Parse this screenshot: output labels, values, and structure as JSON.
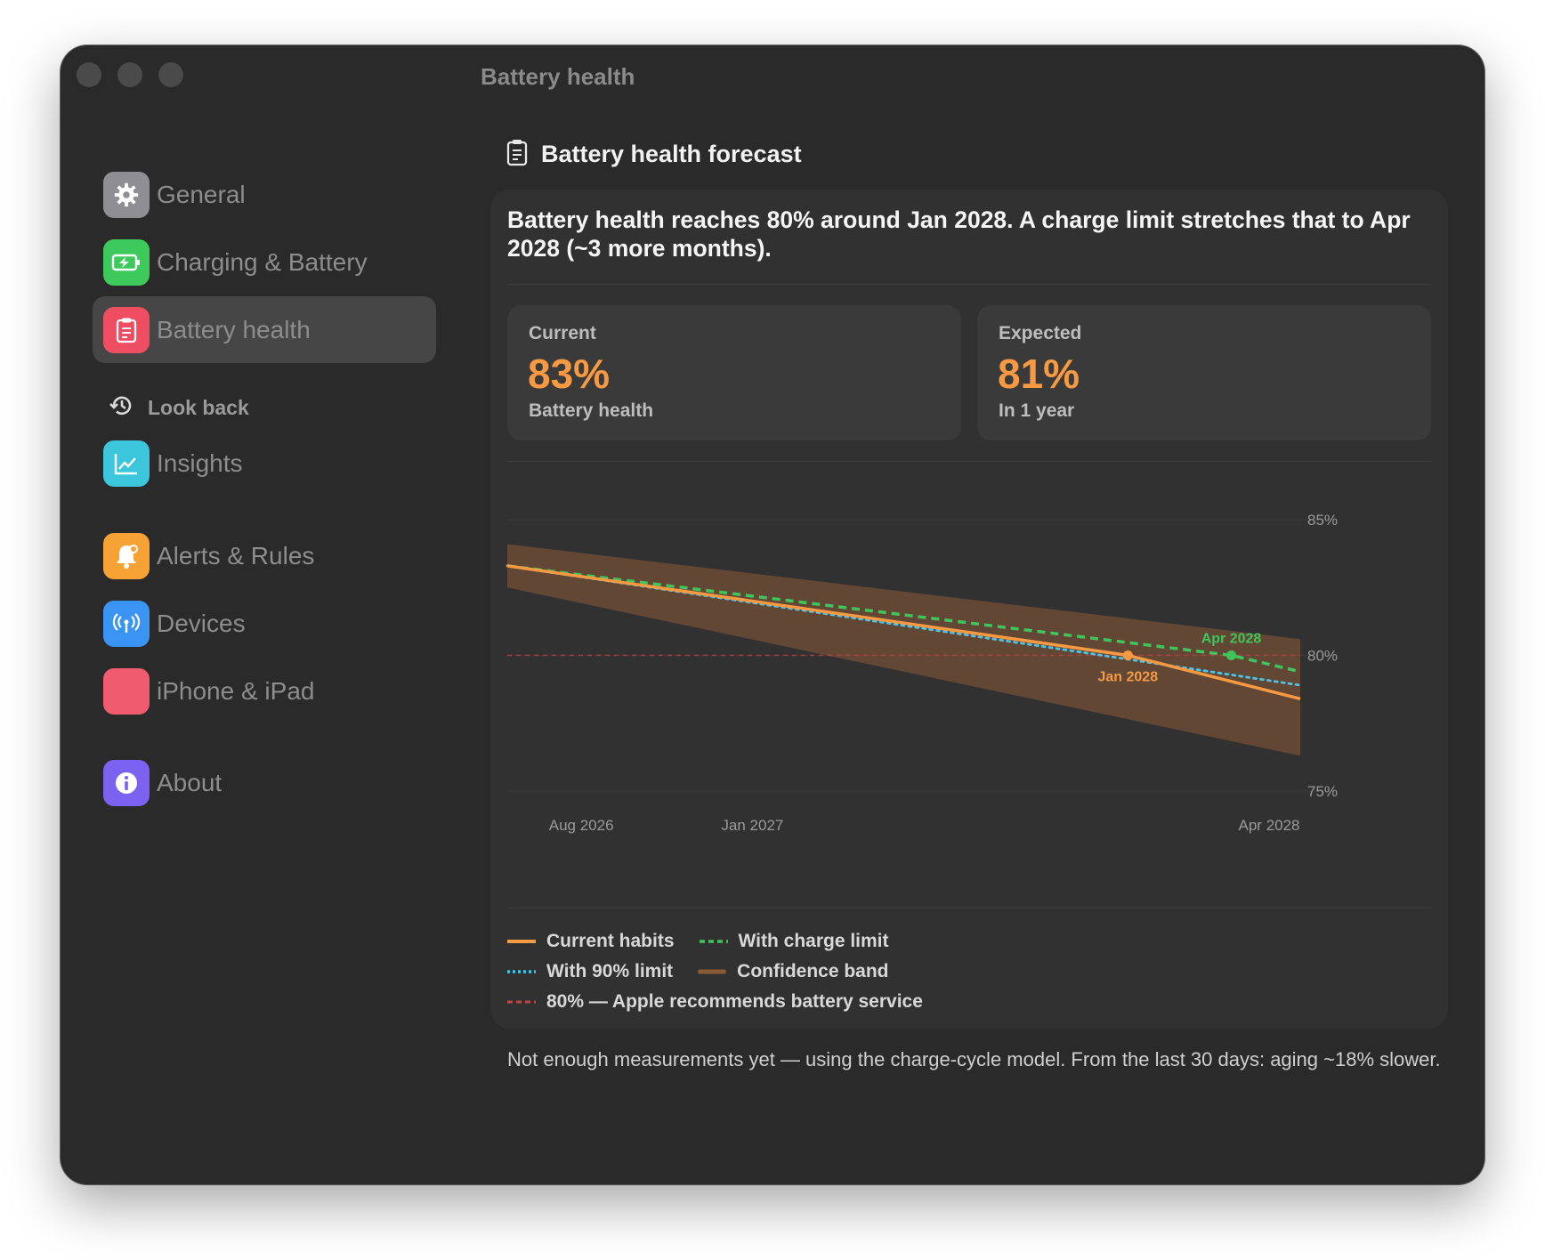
{
  "window": {
    "title": "Battery health"
  },
  "sidebar": {
    "items": [
      {
        "label": "General",
        "icon": "gear-icon",
        "color": "#8e8e93"
      },
      {
        "label": "Charging & Battery",
        "icon": "battery-charging-icon",
        "color": "#3ec95c"
      },
      {
        "label": "Battery health",
        "icon": "clipboard-icon",
        "color": "#ef4e62",
        "active": true
      },
      {
        "label": "Insights",
        "icon": "chart-icon",
        "color": "#3cc6dc"
      },
      {
        "label": "Alerts & Rules",
        "icon": "bell-icon",
        "color": "#f7a234"
      },
      {
        "label": "Devices",
        "icon": "antenna-icon",
        "color": "#3a94f3"
      },
      {
        "label": "iPhone & iPad",
        "icon": "phone-icon",
        "color": "#f05b6f"
      },
      {
        "label": "About",
        "icon": "info-icon",
        "color": "#7c62f0"
      }
    ],
    "section": {
      "label": "Look back",
      "icon": "history-icon"
    }
  },
  "panel": {
    "title": "Battery health forecast",
    "icon": "clipboard-icon",
    "headline": "Battery health reaches 80% around Jan 2028. A charge limit stretches that to Apr 2028 (~3 more months).",
    "stats": [
      {
        "label": "Current",
        "value": "83%",
        "sub": "Battery health"
      },
      {
        "label": "Expected",
        "value": "81%",
        "sub": "In 1 year"
      }
    ],
    "legend": [
      {
        "label": "Current habits",
        "style": "solid",
        "color": "#f59a43"
      },
      {
        "label": "With charge limit",
        "style": "dashed",
        "color": "#3fc55b"
      },
      {
        "label": "With 90% limit",
        "style": "dotted",
        "color": "#4cc3e6"
      },
      {
        "label": "Confidence band",
        "style": "band",
        "color": "#8a5a36"
      },
      {
        "label": "80% — Apple recommends battery service",
        "style": "dashed",
        "color": "#c04444"
      }
    ],
    "footnote": "Not enough measurements yet — using the charge-cycle model. From the last 30 days: aging ~18% slower."
  },
  "chart_data": {
    "type": "line",
    "x_ticks": [
      "Aug 2026",
      "Jan 2027",
      "Apr 2028"
    ],
    "y_ticks": [
      "85%",
      "80%",
      "75%"
    ],
    "ylim": [
      75,
      85
    ],
    "xlim": [
      "2026-07",
      "2028-06"
    ],
    "threshold": {
      "value": 80,
      "label": "80% — Apple recommends battery service"
    },
    "series": [
      {
        "name": "Current habits",
        "x": [
          "2026-07",
          "2028-01",
          "2028-06"
        ],
        "y": [
          83.3,
          80.0,
          78.4
        ]
      },
      {
        "name": "With charge limit",
        "x": [
          "2026-07",
          "2028-04",
          "2028-06"
        ],
        "y": [
          83.3,
          80.0,
          79.4
        ]
      },
      {
        "name": "With 90% limit",
        "x": [
          "2026-07",
          "2028-06"
        ],
        "y": [
          83.3,
          78.9
        ]
      }
    ],
    "band": {
      "name": "Confidence band",
      "x": [
        "2026-07",
        "2028-06"
      ],
      "upper": [
        84.1,
        80.6
      ],
      "lower": [
        82.5,
        76.3
      ]
    },
    "annotations": [
      {
        "text": "Jan 2028",
        "x": "2028-01",
        "y": 80,
        "color": "#f59a43"
      },
      {
        "text": "Apr 2028",
        "x": "2028-04",
        "y": 80,
        "color": "#3fc55b"
      }
    ]
  }
}
